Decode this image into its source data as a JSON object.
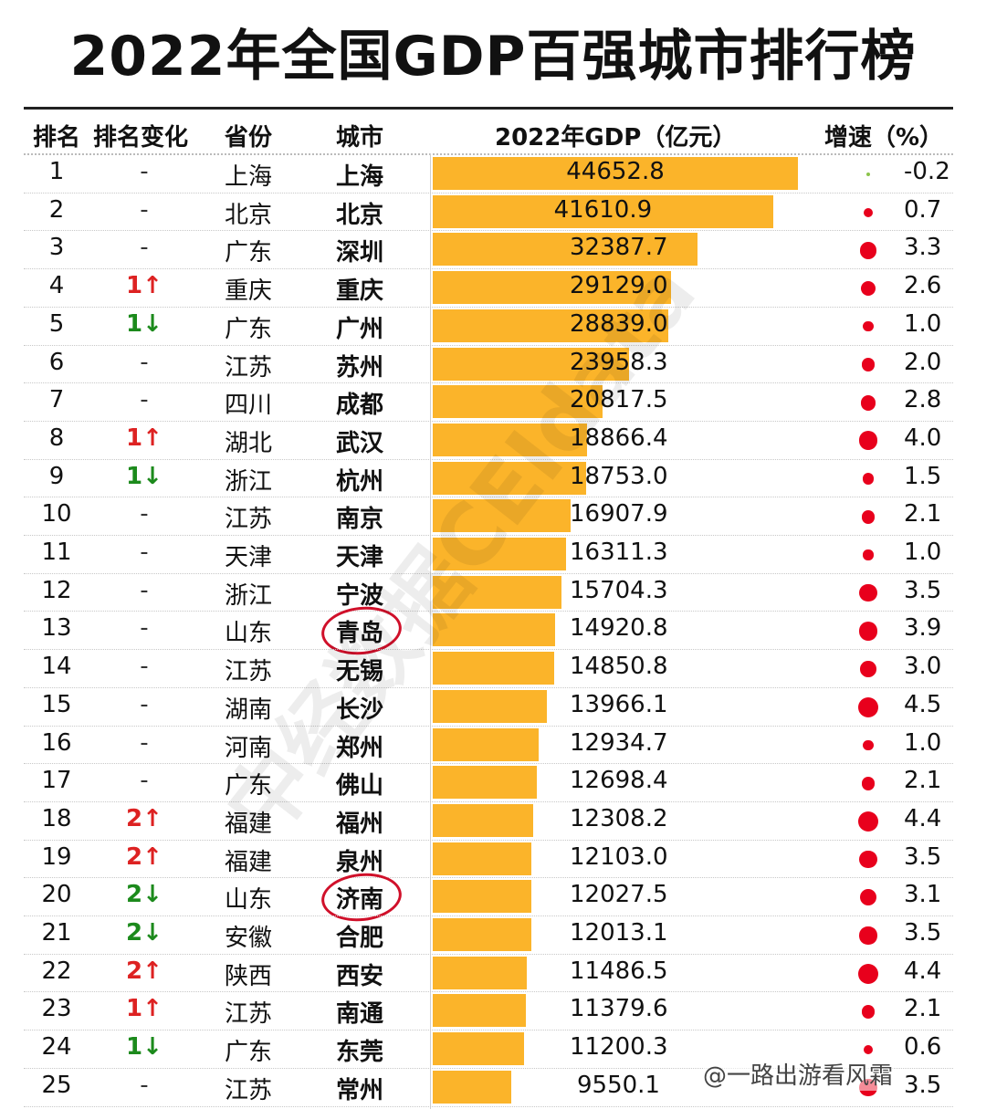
{
  "chart_data": {
    "type": "bar",
    "title": "2022年全国GDP百强城市排行榜",
    "columns": [
      "排名",
      "排名变化",
      "省份",
      "城市",
      "2022年GDP（亿元）",
      "增速（%）"
    ],
    "rows": [
      {
        "rank": "1",
        "change": "-",
        "dir": "none",
        "province": "上海",
        "city": "上海",
        "gdp": 44652.8,
        "gdp_label": "44652.8",
        "growth": -0.2,
        "growth_label": "-0.2"
      },
      {
        "rank": "2",
        "change": "-",
        "dir": "none",
        "province": "北京",
        "city": "北京",
        "gdp": 41610.9,
        "gdp_label": "41610.9",
        "growth": 0.7,
        "growth_label": "0.7"
      },
      {
        "rank": "3",
        "change": "-",
        "dir": "none",
        "province": "广东",
        "city": "深圳",
        "gdp": 32387.7,
        "gdp_label": "32387.7",
        "growth": 3.3,
        "growth_label": "3.3"
      },
      {
        "rank": "4",
        "change": "1↑",
        "dir": "up",
        "province": "重庆",
        "city": "重庆",
        "gdp": 29129.0,
        "gdp_label": "29129.0",
        "growth": 2.6,
        "growth_label": "2.6"
      },
      {
        "rank": "5",
        "change": "1↓",
        "dir": "down",
        "province": "广东",
        "city": "广州",
        "gdp": 28839.0,
        "gdp_label": "28839.0",
        "growth": 1.0,
        "growth_label": "1.0"
      },
      {
        "rank": "6",
        "change": "-",
        "dir": "none",
        "province": "江苏",
        "city": "苏州",
        "gdp": 23958.3,
        "gdp_label": "23958.3",
        "growth": 2.0,
        "growth_label": "2.0"
      },
      {
        "rank": "7",
        "change": "-",
        "dir": "none",
        "province": "四川",
        "city": "成都",
        "gdp": 20817.5,
        "gdp_label": "20817.5",
        "growth": 2.8,
        "growth_label": "2.8"
      },
      {
        "rank": "8",
        "change": "1↑",
        "dir": "up",
        "province": "湖北",
        "city": "武汉",
        "gdp": 18866.4,
        "gdp_label": "18866.4",
        "growth": 4.0,
        "growth_label": "4.0"
      },
      {
        "rank": "9",
        "change": "1↓",
        "dir": "down",
        "province": "浙江",
        "city": "杭州",
        "gdp": 18753.0,
        "gdp_label": "18753.0",
        "growth": 1.5,
        "growth_label": "1.5"
      },
      {
        "rank": "10",
        "change": "-",
        "dir": "none",
        "province": "江苏",
        "city": "南京",
        "gdp": 16907.9,
        "gdp_label": "16907.9",
        "growth": 2.1,
        "growth_label": "2.1"
      },
      {
        "rank": "11",
        "change": "-",
        "dir": "none",
        "province": "天津",
        "city": "天津",
        "gdp": 16311.3,
        "gdp_label": "16311.3",
        "growth": 1.0,
        "growth_label": "1.0"
      },
      {
        "rank": "12",
        "change": "-",
        "dir": "none",
        "province": "浙江",
        "city": "宁波",
        "gdp": 15704.3,
        "gdp_label": "15704.3",
        "growth": 3.5,
        "growth_label": "3.5"
      },
      {
        "rank": "13",
        "change": "-",
        "dir": "none",
        "province": "山东",
        "city": "青岛",
        "gdp": 14920.8,
        "gdp_label": "14920.8",
        "growth": 3.9,
        "growth_label": "3.9",
        "circled": true
      },
      {
        "rank": "14",
        "change": "-",
        "dir": "none",
        "province": "江苏",
        "city": "无锡",
        "gdp": 14850.8,
        "gdp_label": "14850.8",
        "growth": 3.0,
        "growth_label": "3.0"
      },
      {
        "rank": "15",
        "change": "-",
        "dir": "none",
        "province": "湖南",
        "city": "长沙",
        "gdp": 13966.1,
        "gdp_label": "13966.1",
        "growth": 4.5,
        "growth_label": "4.5"
      },
      {
        "rank": "16",
        "change": "-",
        "dir": "none",
        "province": "河南",
        "city": "郑州",
        "gdp": 12934.7,
        "gdp_label": "12934.7",
        "growth": 1.0,
        "growth_label": "1.0"
      },
      {
        "rank": "17",
        "change": "-",
        "dir": "none",
        "province": "广东",
        "city": "佛山",
        "gdp": 12698.4,
        "gdp_label": "12698.4",
        "growth": 2.1,
        "growth_label": "2.1"
      },
      {
        "rank": "18",
        "change": "2↑",
        "dir": "up",
        "province": "福建",
        "city": "福州",
        "gdp": 12308.2,
        "gdp_label": "12308.2",
        "growth": 4.4,
        "growth_label": "4.4"
      },
      {
        "rank": "19",
        "change": "2↑",
        "dir": "up",
        "province": "福建",
        "city": "泉州",
        "gdp": 12103.0,
        "gdp_label": "12103.0",
        "growth": 3.5,
        "growth_label": "3.5"
      },
      {
        "rank": "20",
        "change": "2↓",
        "dir": "down",
        "province": "山东",
        "city": "济南",
        "gdp": 12027.5,
        "gdp_label": "12027.5",
        "growth": 3.1,
        "growth_label": "3.1",
        "circled": true
      },
      {
        "rank": "21",
        "change": "2↓",
        "dir": "down",
        "province": "安徽",
        "city": "合肥",
        "gdp": 12013.1,
        "gdp_label": "12013.1",
        "growth": 3.5,
        "growth_label": "3.5"
      },
      {
        "rank": "22",
        "change": "2↑",
        "dir": "up",
        "province": "陕西",
        "city": "西安",
        "gdp": 11486.5,
        "gdp_label": "11486.5",
        "growth": 4.4,
        "growth_label": "4.4"
      },
      {
        "rank": "23",
        "change": "1↑",
        "dir": "up",
        "province": "江苏",
        "city": "南通",
        "gdp": 11379.6,
        "gdp_label": "11379.6",
        "growth": 2.1,
        "growth_label": "2.1"
      },
      {
        "rank": "24",
        "change": "1↓",
        "dir": "down",
        "province": "广东",
        "city": "东莞",
        "gdp": 11200.3,
        "gdp_label": "11200.3",
        "growth": 0.6,
        "growth_label": "0.6"
      },
      {
        "rank": "25",
        "change": "-",
        "dir": "none",
        "province": "江苏",
        "city": "常州",
        "gdp": 9550.1,
        "gdp_label": "9550.1",
        "growth": 3.5,
        "growth_label": "3.5"
      }
    ],
    "colors": {
      "bar": "#fbb42a",
      "dot_positive": "#e8001c",
      "dot_negative": "#8bc34a",
      "rank_up": "#d22222",
      "rank_down": "#1c8a1c",
      "circle": "#d0102a"
    }
  },
  "watermark": "中经数据CEIdata",
  "credit": "@一路出游看风霜"
}
